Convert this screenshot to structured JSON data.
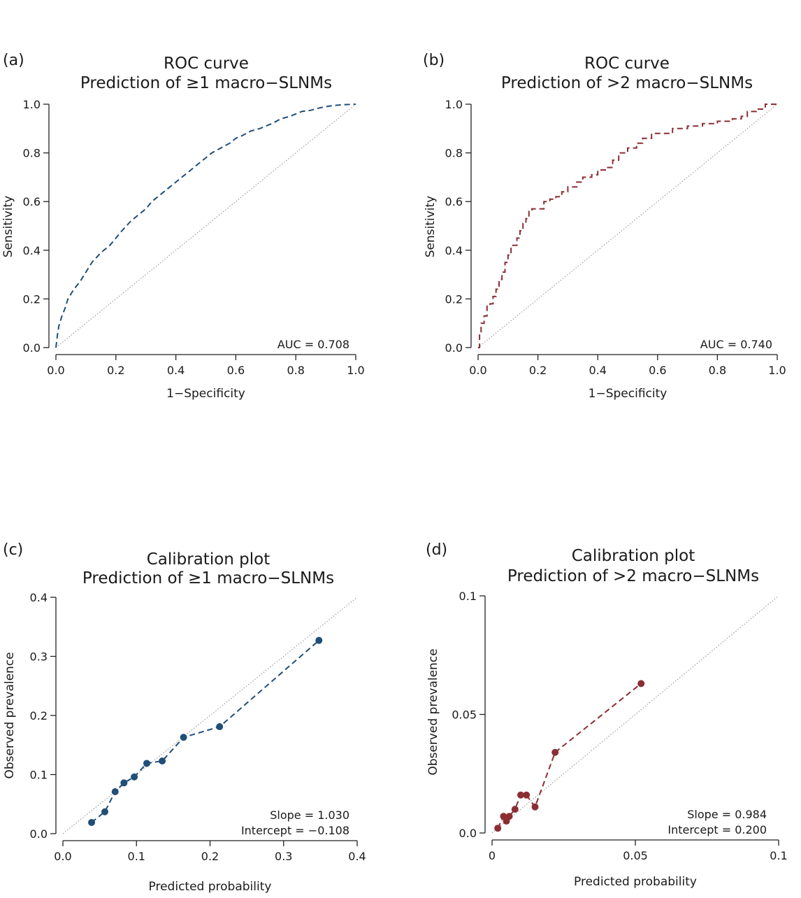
{
  "chart_data": [
    {
      "panel_label": "(a)",
      "type": "line",
      "title": "ROC curve",
      "subtitle": "Prediction of ≥1 macro−SLNMs",
      "xlabel": "1−Specificity",
      "ylabel": "Sensitivity",
      "xlim": [
        0,
        1
      ],
      "ylim": [
        0,
        1
      ],
      "xticks": [
        "0.0",
        "0.2",
        "0.4",
        "0.6",
        "0.8",
        "1.0"
      ],
      "yticks": [
        "0.0",
        "0.2",
        "0.4",
        "0.6",
        "0.8",
        "1.0"
      ],
      "grid": false,
      "annotations": [
        "AUC = 0.708"
      ],
      "reference_line": "diagonal",
      "color": "#1f4e79",
      "series": [
        {
          "style": "dashed",
          "x": [
            0,
            0.005,
            0.01,
            0.02,
            0.03,
            0.04,
            0.05,
            0.06,
            0.08,
            0.1,
            0.12,
            0.15,
            0.18,
            0.2,
            0.22,
            0.25,
            0.28,
            0.3,
            0.32,
            0.35,
            0.38,
            0.4,
            0.42,
            0.45,
            0.48,
            0.5,
            0.52,
            0.55,
            0.58,
            0.6,
            0.62,
            0.65,
            0.68,
            0.7,
            0.72,
            0.75,
            0.78,
            0.8,
            0.82,
            0.85,
            0.88,
            0.9,
            0.93,
            0.96,
            1.0
          ],
          "y": [
            0,
            0.05,
            0.09,
            0.13,
            0.16,
            0.2,
            0.22,
            0.24,
            0.27,
            0.31,
            0.35,
            0.39,
            0.42,
            0.45,
            0.48,
            0.52,
            0.55,
            0.57,
            0.6,
            0.63,
            0.66,
            0.68,
            0.7,
            0.73,
            0.76,
            0.78,
            0.8,
            0.82,
            0.84,
            0.86,
            0.87,
            0.89,
            0.9,
            0.91,
            0.92,
            0.94,
            0.95,
            0.96,
            0.97,
            0.975,
            0.985,
            0.99,
            0.995,
            0.998,
            1.0
          ]
        }
      ]
    },
    {
      "panel_label": "(b)",
      "type": "line",
      "title": "ROC curve",
      "subtitle": "Prediction of >2 macro−SLNMs",
      "xlabel": "1−Specificity",
      "ylabel": "Sensitivity",
      "xlim": [
        0,
        1
      ],
      "ylim": [
        0,
        1
      ],
      "xticks": [
        "0.0",
        "0.2",
        "0.4",
        "0.6",
        "0.8",
        "1.0"
      ],
      "yticks": [
        "0.0",
        "0.2",
        "0.4",
        "0.6",
        "0.8",
        "1.0"
      ],
      "grid": false,
      "annotations": [
        "AUC = 0.740"
      ],
      "reference_line": "diagonal",
      "color": "#8b2e33",
      "series": [
        {
          "style": "dashed-step",
          "x": [
            0,
            0.005,
            0.01,
            0.02,
            0.03,
            0.04,
            0.05,
            0.06,
            0.07,
            0.08,
            0.09,
            0.1,
            0.11,
            0.13,
            0.14,
            0.15,
            0.16,
            0.17,
            0.18,
            0.2,
            0.22,
            0.24,
            0.26,
            0.28,
            0.3,
            0.33,
            0.35,
            0.38,
            0.4,
            0.43,
            0.45,
            0.47,
            0.5,
            0.53,
            0.55,
            0.58,
            0.6,
            0.65,
            0.7,
            0.75,
            0.8,
            0.85,
            0.88,
            0.9,
            0.93,
            0.96,
            1.0
          ],
          "y": [
            0,
            0.06,
            0.1,
            0.13,
            0.17,
            0.18,
            0.21,
            0.24,
            0.28,
            0.31,
            0.35,
            0.38,
            0.42,
            0.45,
            0.48,
            0.51,
            0.53,
            0.56,
            0.57,
            0.57,
            0.6,
            0.61,
            0.62,
            0.64,
            0.66,
            0.68,
            0.7,
            0.71,
            0.73,
            0.74,
            0.77,
            0.8,
            0.82,
            0.84,
            0.86,
            0.88,
            0.88,
            0.9,
            0.91,
            0.92,
            0.93,
            0.94,
            0.95,
            0.97,
            0.98,
            1.0,
            1.0
          ]
        }
      ]
    },
    {
      "panel_label": "(c)",
      "type": "scatter",
      "title": "Calibration plot",
      "subtitle": "Prediction of ≥1 macro−SLNMs",
      "xlabel": "Predicted probability",
      "ylabel": "Observed prevalence",
      "xlim": [
        0,
        0.4
      ],
      "ylim": [
        0,
        0.4
      ],
      "xticks": [
        "0.0",
        "0.1",
        "0.2",
        "0.3",
        "0.4"
      ],
      "yticks": [
        "0.0",
        "0.1",
        "0.2",
        "0.3",
        "0.4"
      ],
      "grid": false,
      "annotations": [
        "Slope = 1.030",
        "Intercept = −0.108"
      ],
      "reference_line": "diagonal",
      "color": "#1f4e79",
      "series": [
        {
          "style": "dashed-with-markers",
          "x": [
            0.039,
            0.057,
            0.071,
            0.083,
            0.097,
            0.114,
            0.135,
            0.164,
            0.213,
            0.348
          ],
          "y": [
            0.019,
            0.037,
            0.071,
            0.086,
            0.096,
            0.119,
            0.123,
            0.163,
            0.181,
            0.327
          ]
        }
      ]
    },
    {
      "panel_label": "(d)",
      "type": "scatter",
      "title": "Calibration plot",
      "subtitle": "Prediction of >2 macro−SLNMs",
      "xlabel": "Predicted probability",
      "ylabel": "Observed prevalence",
      "xlim": [
        0,
        0.1
      ],
      "ylim": [
        0,
        0.1
      ],
      "xticks": [
        "0",
        "0.05",
        "0.1"
      ],
      "yticks": [
        "0.0",
        "0.05",
        "0.1"
      ],
      "grid": false,
      "annotations": [
        "Slope = 0.984",
        "Intercept = 0.200"
      ],
      "reference_line": "diagonal",
      "color": "#8b2e33",
      "series": [
        {
          "style": "dashed-with-markers",
          "x": [
            0.002,
            0.004,
            0.005,
            0.006,
            0.008,
            0.01,
            0.012,
            0.015,
            0.022,
            0.052
          ],
          "y": [
            0.002,
            0.007,
            0.005,
            0.007,
            0.01,
            0.016,
            0.016,
            0.011,
            0.034,
            0.063
          ]
        }
      ]
    }
  ]
}
